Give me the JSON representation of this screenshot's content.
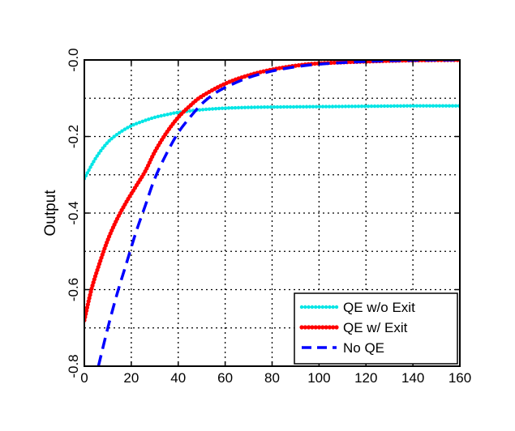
{
  "chart_data": {
    "type": "line",
    "title": "",
    "xlabel": "",
    "ylabel": "Output",
    "xlim": [
      0,
      160
    ],
    "ylim": [
      -0.8,
      0.0
    ],
    "xticks": [
      0,
      20,
      40,
      60,
      80,
      100,
      120,
      140,
      160
    ],
    "xtick_labels": [
      "0",
      "20",
      "40",
      "60",
      "80",
      "100",
      "120",
      "140",
      "160"
    ],
    "yticks": [
      -0.8,
      -0.6,
      -0.4,
      -0.2,
      0.0
    ],
    "ytick_labels": [
      "-0.8",
      "-0.6",
      "-0.4",
      "-0.2",
      "-0.0"
    ],
    "grid": true,
    "legend_position": "bottom-right",
    "series": [
      {
        "name": "QE w/o Exit",
        "color": "#00e5e5",
        "style": "dotted-markers",
        "x": [
          0,
          5,
          10,
          15,
          20,
          25,
          30,
          35,
          40,
          50,
          60,
          70,
          80,
          100,
          120,
          140,
          160
        ],
        "y": [
          -0.31,
          -0.255,
          -0.215,
          -0.19,
          -0.172,
          -0.16,
          -0.15,
          -0.143,
          -0.137,
          -0.13,
          -0.126,
          -0.124,
          -0.123,
          -0.122,
          -0.121,
          -0.12,
          -0.12
        ]
      },
      {
        "name": "QE w/ Exit",
        "color": "#ff0000",
        "style": "solid-markers",
        "x": [
          0,
          3,
          6,
          10,
          14,
          18,
          22,
          26,
          30,
          35,
          40,
          45,
          50,
          60,
          70,
          80,
          90,
          100,
          120,
          140,
          160
        ],
        "y": [
          -0.68,
          -0.6,
          -0.54,
          -0.47,
          -0.415,
          -0.37,
          -0.33,
          -0.29,
          -0.24,
          -0.19,
          -0.15,
          -0.12,
          -0.095,
          -0.062,
          -0.04,
          -0.025,
          -0.015,
          -0.009,
          -0.004,
          -0.001,
          0.0
        ]
      },
      {
        "name": "No QE",
        "color": "#0000ff",
        "style": "dashed",
        "x": [
          6,
          10,
          14,
          18,
          22,
          26,
          30,
          35,
          40,
          45,
          50,
          55,
          60,
          70,
          80,
          90,
          100,
          120,
          140,
          160
        ],
        "y": [
          -0.8,
          -0.7,
          -0.61,
          -0.53,
          -0.45,
          -0.38,
          -0.31,
          -0.245,
          -0.19,
          -0.15,
          -0.115,
          -0.09,
          -0.072,
          -0.046,
          -0.029,
          -0.018,
          -0.011,
          -0.004,
          -0.001,
          0.0
        ]
      }
    ]
  }
}
